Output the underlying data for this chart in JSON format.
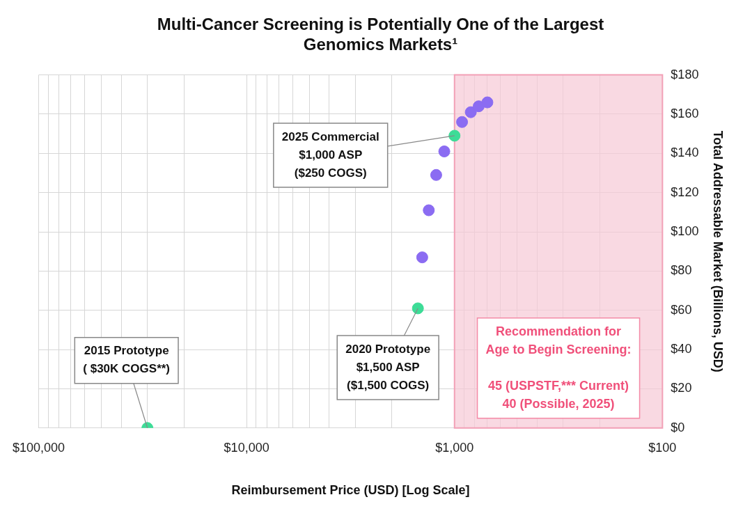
{
  "chart_data": {
    "type": "scatter",
    "title": "Multi-Cancer Screening is Potentially One of the Largest Genomics Markets¹",
    "xlabel": "Reimbursement Price (USD) [Log Scale]",
    "ylabel": "Total Addressable Market (Billions, USD)",
    "log": "x",
    "grid": true,
    "marker": "circle",
    "legend": false,
    "xlim": [
      100000,
      100
    ],
    "xticks": [
      {
        "value": 100000,
        "label": "$100,000"
      },
      {
        "value": 90000,
        "label": null
      },
      {
        "value": 80000,
        "label": null
      },
      {
        "value": 70000,
        "label": null
      },
      {
        "value": 60000,
        "label": null
      },
      {
        "value": 50000,
        "label": null
      },
      {
        "value": 40000,
        "label": null
      },
      {
        "value": 30000,
        "label": null
      },
      {
        "value": 20000,
        "label": null
      },
      {
        "value": 10000,
        "label": "$10,000"
      },
      {
        "value": 9000,
        "label": null
      },
      {
        "value": 8000,
        "label": null
      },
      {
        "value": 7000,
        "label": null
      },
      {
        "value": 6000,
        "label": null
      },
      {
        "value": 5000,
        "label": null
      },
      {
        "value": 4000,
        "label": null
      },
      {
        "value": 3000,
        "label": null
      },
      {
        "value": 2000,
        "label": null
      },
      {
        "value": 1000,
        "label": "$1,000"
      },
      {
        "value": 900,
        "label": null
      },
      {
        "value": 800,
        "label": null
      },
      {
        "value": 700,
        "label": null
      },
      {
        "value": 600,
        "label": null
      },
      {
        "value": 500,
        "label": null
      },
      {
        "value": 400,
        "label": null
      },
      {
        "value": 300,
        "label": null
      },
      {
        "value": 200,
        "label": null
      },
      {
        "value": 100,
        "label": "$100"
      }
    ],
    "ylim": [
      0,
      180
    ],
    "yticks": [
      {
        "value": 0,
        "label": "$0"
      },
      {
        "value": 20,
        "label": "$20"
      },
      {
        "value": 40,
        "label": "$40"
      },
      {
        "value": 60,
        "label": "$60"
      },
      {
        "value": 80,
        "label": "$80"
      },
      {
        "value": 100,
        "label": "$100"
      },
      {
        "value": 120,
        "label": "$120"
      },
      {
        "value": 140,
        "label": "$140"
      },
      {
        "value": 160,
        "label": "$160"
      },
      {
        "value": 180,
        "label": "$180"
      }
    ],
    "series": [
      {
        "color": "#3ddc97",
        "x": [
          30000,
          1500,
          1000
        ],
        "values": [
          0,
          61,
          149
        ]
      },
      {
        "color": "#8b6cf2",
        "x": [
          1430,
          1330,
          1225,
          1120,
          920,
          835,
          765,
          695
        ],
        "values": [
          87,
          111,
          129,
          141,
          156,
          161,
          164,
          166
        ]
      }
    ],
    "bands": [
      {
        "axis": "x",
        "from": 1000,
        "to": 100,
        "color": "#f7c9d5",
        "label": "Recommendation for\nAge to Begin Screening:\n\n45 (USPSTF,*** Current)\n40 (Possible, 2025)"
      }
    ],
    "annotations": [
      {
        "text": "2015 Prototype\n( $30K COGS**)",
        "x": 30000,
        "y": 0
      },
      {
        "text": "2020 Prototype\n$1,500 ASP\n($1,500 COGS)",
        "x": 1500,
        "y": 61
      },
      {
        "text": "2025 Commercial\n$1,000 ASP\n($250 COGS)",
        "x": 1000,
        "y": 149
      }
    ]
  }
}
